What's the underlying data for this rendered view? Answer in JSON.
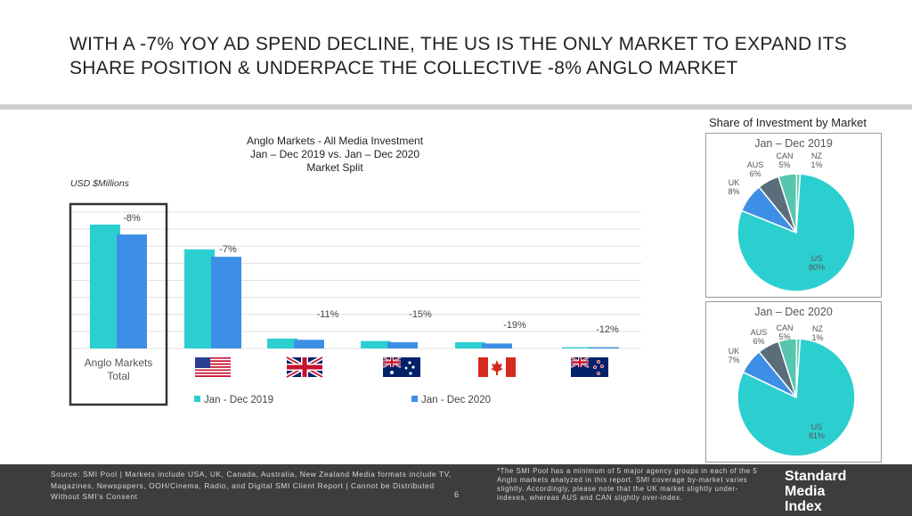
{
  "headline": "WITH A -7% YOY AD SPEND DECLINE, THE US IS THE ONLY MARKET TO EXPAND ITS SHARE POSITION & UNDERPACE THE COLLECTIVE -8% ANGLO MARKET",
  "colors": {
    "series_2019": "#2ccfd0",
    "series_2020": "#3d8fe6",
    "nz": "#4fcfa5",
    "can": "#57c5b0",
    "aus": "#5b6d7a",
    "uk": "#3d8fe6",
    "us": "#2ccfd0"
  },
  "chart_data": [
    {
      "type": "bar",
      "title_lines": [
        "Anglo Markets - All Media Investment",
        "Jan – Dec 2019 vs. Jan – Dec 2020",
        "Market Split"
      ],
      "ylabel": "USD $Millions",
      "categories": [
        "Anglo Markets Total",
        "US",
        "UK",
        "AUS",
        "CAN",
        "NZ"
      ],
      "category_labels": [
        "Anglo Markets",
        "Total"
      ],
      "flag_icons": [
        "us-flag-icon",
        "uk-flag-icon",
        "australia-flag-icon",
        "canada-flag-icon",
        "new-zealand-flag-icon"
      ],
      "ylim": [
        0,
        100
      ],
      "grid": true,
      "legend": "bottom",
      "series": [
        {
          "name": "Jan - Dec 2019",
          "values": [
            100,
            80,
            8,
            6,
            5,
            1
          ]
        },
        {
          "name": "Jan - Dec 2020",
          "values": [
            92,
            74,
            7,
            5,
            4,
            1
          ]
        }
      ],
      "data_labels": [
        "-8%",
        "-7%",
        "-11%",
        "-15%",
        "-19%",
        "-12%"
      ]
    },
    {
      "type": "pie",
      "title": "Jan – Dec 2019",
      "slices": [
        {
          "label": "US",
          "value": 80,
          "text": "80%"
        },
        {
          "label": "UK",
          "value": 8,
          "text": "8%"
        },
        {
          "label": "AUS",
          "value": 6,
          "text": "6%"
        },
        {
          "label": "CAN",
          "value": 5,
          "text": "5%"
        },
        {
          "label": "NZ",
          "value": 1,
          "text": "1%"
        }
      ]
    },
    {
      "type": "pie",
      "title": "Jan – Dec 2020",
      "slices": [
        {
          "label": "US",
          "value": 81,
          "text": "81%"
        },
        {
          "label": "UK",
          "value": 7,
          "text": "7%"
        },
        {
          "label": "AUS",
          "value": 6,
          "text": "6%"
        },
        {
          "label": "CAN",
          "value": 5,
          "text": "5%"
        },
        {
          "label": "NZ",
          "value": 1,
          "text": "1%"
        }
      ]
    }
  ],
  "side_title": "Share of Investment by Market",
  "footer": {
    "source": "Source: SMI Pool | Markets include USA, UK, Canada, Australia, New Zealand Media formats include TV, Magazines, Newspapers, OOH/Cinema, Radio, and Digital SMI Client Report | Cannot be Distributed Without SMI's Consent",
    "page_number": "6",
    "note": "*The SMI Pool has a minimum of 5 major agency groups in each of the 5 Anglo markets analyzed in this report. SMI coverage by-market varies slightly. Accordingly, please note that the UK market slightly under-indexes, whereas AUS and CAN slightly over-index.",
    "logo_lines": [
      "Standard",
      "Media",
      "Index"
    ]
  }
}
